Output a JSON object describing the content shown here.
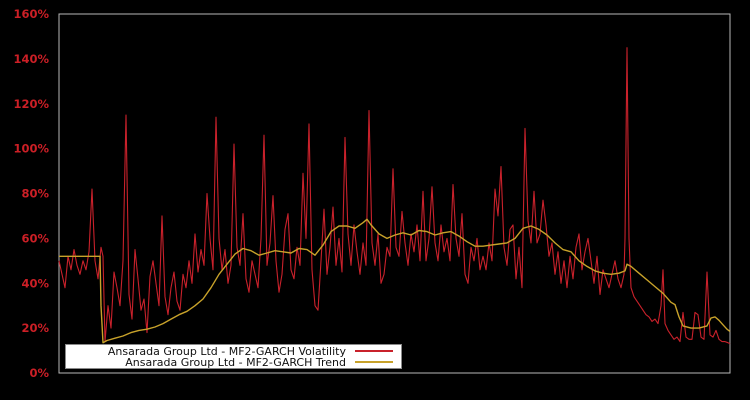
{
  "chart_data": {
    "type": "line",
    "title": "",
    "background_color": "#000000",
    "plot_border_color": "#b9b9b9",
    "tick_label_color": "#cc1f26",
    "grid": "off",
    "legend": {
      "position": "bottom-left",
      "background": "#ffffff",
      "border_color": "#8a8a8a",
      "text_color": "#111111"
    },
    "x_axis": {
      "min": 0,
      "max": 671,
      "ticks": []
    },
    "y_axis": {
      "min": 0,
      "max": 160,
      "unit": "%",
      "ticks": [
        {
          "label": "0%",
          "value": 0
        },
        {
          "label": "20%",
          "value": 20
        },
        {
          "label": "40%",
          "value": 40
        },
        {
          "label": "60%",
          "value": 60
        },
        {
          "label": "80%",
          "value": 80
        },
        {
          "label": "100%",
          "value": 100
        },
        {
          "label": "120%",
          "value": 120
        },
        {
          "label": "140%",
          "value": 140
        },
        {
          "label": "160%",
          "value": 160
        }
      ]
    },
    "series": [
      {
        "name": "Ansarada Group Ltd - MF2-GARCH Volatility",
        "color": "#c9212b",
        "stroke_width": 1.1,
        "points": [
          [
            0,
            50
          ],
          [
            3,
            44
          ],
          [
            6,
            38
          ],
          [
            9,
            52
          ],
          [
            12,
            46
          ],
          [
            15,
            55
          ],
          [
            18,
            48
          ],
          [
            21,
            44
          ],
          [
            24,
            50
          ],
          [
            27,
            46
          ],
          [
            30,
            54
          ],
          [
            33,
            82
          ],
          [
            36,
            50
          ],
          [
            39,
            42
          ],
          [
            42,
            56
          ],
          [
            44,
            52
          ],
          [
            46,
            14
          ],
          [
            49,
            30
          ],
          [
            52,
            20
          ],
          [
            55,
            45
          ],
          [
            58,
            38
          ],
          [
            61,
            30
          ],
          [
            64,
            50
          ],
          [
            67,
            115
          ],
          [
            70,
            35
          ],
          [
            73,
            24
          ],
          [
            76,
            55
          ],
          [
            79,
            42
          ],
          [
            82,
            28
          ],
          [
            85,
            33
          ],
          [
            88,
            18
          ],
          [
            91,
            43
          ],
          [
            94,
            50
          ],
          [
            97,
            40
          ],
          [
            100,
            30
          ],
          [
            103,
            70
          ],
          [
            106,
            34
          ],
          [
            109,
            26
          ],
          [
            112,
            38
          ],
          [
            115,
            45
          ],
          [
            118,
            32
          ],
          [
            121,
            28
          ],
          [
            124,
            44
          ],
          [
            127,
            38
          ],
          [
            130,
            50
          ],
          [
            133,
            40
          ],
          [
            136,
            62
          ],
          [
            139,
            45
          ],
          [
            142,
            55
          ],
          [
            145,
            48
          ],
          [
            148,
            80
          ],
          [
            151,
            60
          ],
          [
            154,
            46
          ],
          [
            157,
            114
          ],
          [
            160,
            60
          ],
          [
            163,
            46
          ],
          [
            166,
            55
          ],
          [
            169,
            40
          ],
          [
            172,
            48
          ],
          [
            175,
            102
          ],
          [
            178,
            56
          ],
          [
            181,
            48
          ],
          [
            184,
            71
          ],
          [
            187,
            42
          ],
          [
            190,
            36
          ],
          [
            193,
            50
          ],
          [
            196,
            44
          ],
          [
            199,
            38
          ],
          [
            202,
            60
          ],
          [
            205,
            106
          ],
          [
            208,
            48
          ],
          [
            211,
            58
          ],
          [
            214,
            79
          ],
          [
            217,
            50
          ],
          [
            220,
            36
          ],
          [
            223,
            44
          ],
          [
            226,
            64
          ],
          [
            229,
            71
          ],
          [
            232,
            46
          ],
          [
            235,
            42
          ],
          [
            238,
            56
          ],
          [
            241,
            48
          ],
          [
            244,
            89
          ],
          [
            247,
            60
          ],
          [
            250,
            111
          ],
          [
            253,
            46
          ],
          [
            256,
            30
          ],
          [
            259,
            28
          ],
          [
            262,
            50
          ],
          [
            265,
            73
          ],
          [
            268,
            44
          ],
          [
            271,
            56
          ],
          [
            274,
            74
          ],
          [
            277,
            48
          ],
          [
            280,
            60
          ],
          [
            283,
            45
          ],
          [
            286,
            105
          ],
          [
            289,
            62
          ],
          [
            292,
            48
          ],
          [
            295,
            66
          ],
          [
            298,
            54
          ],
          [
            301,
            44
          ],
          [
            304,
            58
          ],
          [
            307,
            48
          ],
          [
            310,
            117
          ],
          [
            313,
            58
          ],
          [
            316,
            48
          ],
          [
            319,
            62
          ],
          [
            322,
            40
          ],
          [
            325,
            44
          ],
          [
            328,
            56
          ],
          [
            331,
            52
          ],
          [
            334,
            91
          ],
          [
            337,
            56
          ],
          [
            340,
            52
          ],
          [
            343,
            72
          ],
          [
            346,
            58
          ],
          [
            349,
            48
          ],
          [
            352,
            62
          ],
          [
            355,
            54
          ],
          [
            358,
            66
          ],
          [
            361,
            50
          ],
          [
            364,
            81
          ],
          [
            367,
            50
          ],
          [
            370,
            60
          ],
          [
            373,
            83
          ],
          [
            376,
            58
          ],
          [
            379,
            50
          ],
          [
            382,
            66
          ],
          [
            385,
            54
          ],
          [
            388,
            60
          ],
          [
            391,
            50
          ],
          [
            394,
            84
          ],
          [
            397,
            60
          ],
          [
            400,
            52
          ],
          [
            403,
            71
          ],
          [
            406,
            44
          ],
          [
            409,
            40
          ],
          [
            412,
            56
          ],
          [
            415,
            50
          ],
          [
            418,
            60
          ],
          [
            421,
            46
          ],
          [
            424,
            52
          ],
          [
            427,
            46
          ],
          [
            430,
            58
          ],
          [
            433,
            50
          ],
          [
            436,
            82
          ],
          [
            439,
            70
          ],
          [
            442,
            92
          ],
          [
            445,
            56
          ],
          [
            448,
            48
          ],
          [
            451,
            64
          ],
          [
            454,
            66
          ],
          [
            457,
            42
          ],
          [
            460,
            56
          ],
          [
            463,
            38
          ],
          [
            466,
            109
          ],
          [
            469,
            68
          ],
          [
            472,
            58
          ],
          [
            475,
            81
          ],
          [
            478,
            58
          ],
          [
            481,
            62
          ],
          [
            484,
            77
          ],
          [
            487,
            66
          ],
          [
            490,
            52
          ],
          [
            493,
            58
          ],
          [
            496,
            44
          ],
          [
            499,
            54
          ],
          [
            502,
            40
          ],
          [
            505,
            50
          ],
          [
            508,
            38
          ],
          [
            511,
            52
          ],
          [
            514,
            42
          ],
          [
            517,
            56
          ],
          [
            520,
            62
          ],
          [
            523,
            46
          ],
          [
            526,
            54
          ],
          [
            529,
            60
          ],
          [
            532,
            50
          ],
          [
            535,
            40
          ],
          [
            538,
            52
          ],
          [
            541,
            35
          ],
          [
            544,
            46
          ],
          [
            547,
            42
          ],
          [
            550,
            38
          ],
          [
            553,
            44
          ],
          [
            556,
            50
          ],
          [
            559,
            42
          ],
          [
            562,
            38
          ],
          [
            565,
            44
          ],
          [
            566,
            60
          ],
          [
            568,
            145
          ],
          [
            570,
            60
          ],
          [
            572,
            38
          ],
          [
            575,
            34
          ],
          [
            578,
            32
          ],
          [
            581,
            30
          ],
          [
            584,
            28
          ],
          [
            587,
            26
          ],
          [
            590,
            25
          ],
          [
            593,
            23
          ],
          [
            596,
            24
          ],
          [
            599,
            22
          ],
          [
            602,
            30
          ],
          [
            604,
            46
          ],
          [
            606,
            22
          ],
          [
            609,
            19
          ],
          [
            612,
            17
          ],
          [
            615,
            15
          ],
          [
            618,
            16
          ],
          [
            621,
            14
          ],
          [
            624,
            27
          ],
          [
            627,
            16
          ],
          [
            630,
            15
          ],
          [
            633,
            15
          ],
          [
            636,
            27
          ],
          [
            639,
            26
          ],
          [
            642,
            16
          ],
          [
            645,
            15
          ],
          [
            648,
            45
          ],
          [
            651,
            17
          ],
          [
            654,
            16
          ],
          [
            657,
            19
          ],
          [
            660,
            15
          ],
          [
            663,
            14
          ],
          [
            666,
            14
          ],
          [
            669,
            13.5
          ],
          [
            671,
            13
          ]
        ]
      },
      {
        "name": "Ansarada Group Ltd - MF2-GARCH Trend",
        "color": "#c8a22a",
        "stroke_width": 1.4,
        "points": [
          [
            0,
            52
          ],
          [
            8,
            52
          ],
          [
            16,
            52
          ],
          [
            24,
            52
          ],
          [
            32,
            52
          ],
          [
            40,
            52
          ],
          [
            41,
            52
          ],
          [
            42,
            30
          ],
          [
            44,
            13.5
          ],
          [
            48,
            14.5
          ],
          [
            56,
            15.5
          ],
          [
            64,
            16.5
          ],
          [
            72,
            18
          ],
          [
            80,
            19
          ],
          [
            88,
            19.5
          ],
          [
            96,
            20.5
          ],
          [
            104,
            22
          ],
          [
            112,
            24
          ],
          [
            120,
            26
          ],
          [
            128,
            27.5
          ],
          [
            136,
            30
          ],
          [
            144,
            33
          ],
          [
            152,
            38
          ],
          [
            160,
            44
          ],
          [
            168,
            48.5
          ],
          [
            176,
            53
          ],
          [
            184,
            55.5
          ],
          [
            192,
            54.5
          ],
          [
            200,
            52.5
          ],
          [
            208,
            53.5
          ],
          [
            216,
            54.5
          ],
          [
            224,
            54
          ],
          [
            232,
            53.5
          ],
          [
            240,
            55.5
          ],
          [
            248,
            55
          ],
          [
            256,
            52.5
          ],
          [
            264,
            57
          ],
          [
            272,
            63
          ],
          [
            280,
            65.5
          ],
          [
            288,
            65.5
          ],
          [
            296,
            64.5
          ],
          [
            304,
            67
          ],
          [
            308,
            68.5
          ],
          [
            312,
            66
          ],
          [
            320,
            62
          ],
          [
            328,
            60
          ],
          [
            336,
            61.5
          ],
          [
            344,
            62.5
          ],
          [
            352,
            61.5
          ],
          [
            360,
            63.5
          ],
          [
            368,
            63
          ],
          [
            376,
            61.5
          ],
          [
            384,
            62.5
          ],
          [
            392,
            63
          ],
          [
            400,
            61
          ],
          [
            408,
            58.5
          ],
          [
            416,
            56.5
          ],
          [
            424,
            56.5
          ],
          [
            432,
            57
          ],
          [
            440,
            57.5
          ],
          [
            448,
            58
          ],
          [
            456,
            60
          ],
          [
            464,
            64.5
          ],
          [
            472,
            65.5
          ],
          [
            480,
            64
          ],
          [
            488,
            61.5
          ],
          [
            496,
            58
          ],
          [
            504,
            55
          ],
          [
            512,
            54
          ],
          [
            520,
            50
          ],
          [
            528,
            47.5
          ],
          [
            536,
            45.5
          ],
          [
            544,
            44.5
          ],
          [
            552,
            44
          ],
          [
            560,
            44.5
          ],
          [
            566,
            45.5
          ],
          [
            568,
            48.5
          ],
          [
            572,
            47.5
          ],
          [
            580,
            44.5
          ],
          [
            588,
            41.5
          ],
          [
            596,
            38.5
          ],
          [
            604,
            35.5
          ],
          [
            612,
            31.5
          ],
          [
            616,
            30.5
          ],
          [
            620,
            25
          ],
          [
            624,
            21
          ],
          [
            632,
            20
          ],
          [
            640,
            20
          ],
          [
            648,
            21
          ],
          [
            652,
            24.5
          ],
          [
            656,
            25
          ],
          [
            660,
            23.5
          ],
          [
            664,
            21.5
          ],
          [
            668,
            19.5
          ],
          [
            671,
            18.5
          ]
        ]
      }
    ]
  }
}
